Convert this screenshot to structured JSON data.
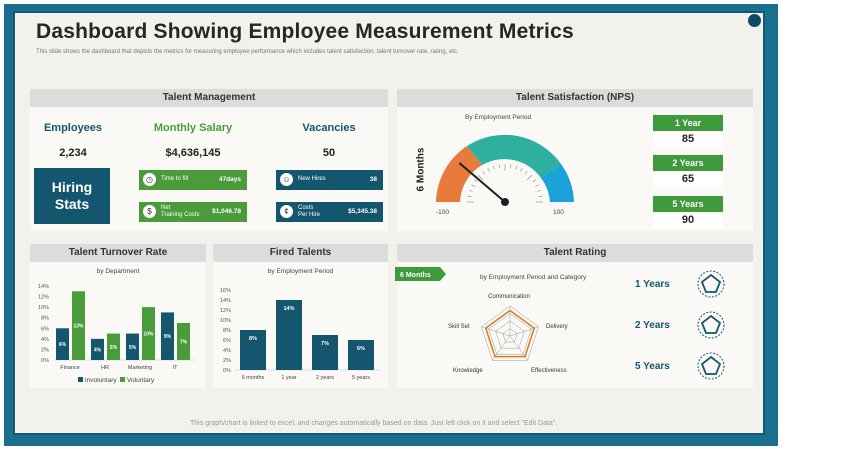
{
  "title": "Dashboard Showing Employee Measurement Metrics",
  "subtitle": "This slide shows the dashboard that depicts the metrics for measuring employee performance which includes talent satisfaction, talent turnover rate, rating, etc.",
  "footer": "This graph/chart is linked to excel, and changes automatically based on data. Just left click on it and select \"Edit Data\".",
  "colors": {
    "navy": "#15566f",
    "green": "#4a9b3a",
    "frame": "#1a6e8e"
  },
  "talent_management": {
    "header": "Talent Management",
    "employees_label": "Employees",
    "employees_value": "2,234",
    "salary_label": "Monthly Salary",
    "salary_value": "$4,636,145",
    "vacancies_label": "Vacancies",
    "vacancies_value": "50",
    "hiring_stats_line1": "Hiring",
    "hiring_stats_line2": "Stats",
    "time_to_fill_label": "Time to fill",
    "time_to_fill_value": "47days",
    "net_cost_label1": "Net",
    "net_cost_label2": "Training Costs",
    "net_cost_value": "$1,046.78",
    "new_hires_label": "New Hires",
    "new_hires_value": "38",
    "costs_per_hire_label1": "Costs",
    "costs_per_hire_label2": "Per Hire",
    "costs_per_hire_value": "$5,345.38"
  },
  "satisfaction": {
    "header": "Talent Satisfaction (NPS)",
    "subtitle": "By Employment Period",
    "period_label": "6 Months",
    "min_label": "-100",
    "max_label": "100",
    "gauge_value": -55,
    "boxes": [
      {
        "label": "1 Year",
        "value": "85"
      },
      {
        "label": "2 Years",
        "value": "65"
      },
      {
        "label": "5 Years",
        "value": "90"
      }
    ]
  },
  "turnover": {
    "header": "Talent Turnover Rate",
    "subtitle": "by Department",
    "legend_involuntary": "Involuntary",
    "legend_voluntary": "Voluntary"
  },
  "fired": {
    "header": "Fired Talents",
    "subtitle": "by Employment Period"
  },
  "rating": {
    "header": "Talent Rating",
    "tag": "6 Months",
    "subtitle": "by Employment Period and Category",
    "axes": [
      "Communication",
      "Delivery",
      "Effectiveness",
      "Knowledge",
      "Skill Set"
    ],
    "periods": [
      "1 Years",
      "2 Years",
      "5 Years"
    ]
  },
  "chart_data": [
    {
      "type": "bar",
      "title": "Talent Turnover Rate",
      "subtitle": "by Department",
      "categories": [
        "Finance",
        "HR",
        "Marketing",
        "IT"
      ],
      "series": [
        {
          "name": "Involuntary",
          "values": [
            6,
            4,
            5,
            9
          ]
        },
        {
          "name": "Voluntary",
          "values": [
            13,
            5,
            10,
            7
          ]
        }
      ],
      "data_labels": [
        [
          "6%",
          "4%",
          "5%",
          "9%"
        ],
        [
          "13%",
          "5%",
          "10%",
          "7%"
        ]
      ],
      "ylim": [
        0,
        14
      ],
      "yticks": [
        "0%",
        "2%",
        "4%",
        "6%",
        "8%",
        "10%",
        "12%",
        "14%"
      ],
      "legend": "bottom"
    },
    {
      "type": "bar",
      "title": "Fired Talents",
      "subtitle": "by Employment Period",
      "categories": [
        "6 months",
        "1 year",
        "2 years",
        "5 years"
      ],
      "values": [
        8,
        14,
        7,
        6
      ],
      "data_labels": [
        "8%",
        "14%",
        "7%",
        "6%"
      ],
      "ylim": [
        0,
        16
      ],
      "yticks": [
        "0%",
        "2%",
        "4%",
        "6%",
        "8%",
        "10%",
        "12%",
        "14%",
        "16%"
      ]
    }
  ]
}
